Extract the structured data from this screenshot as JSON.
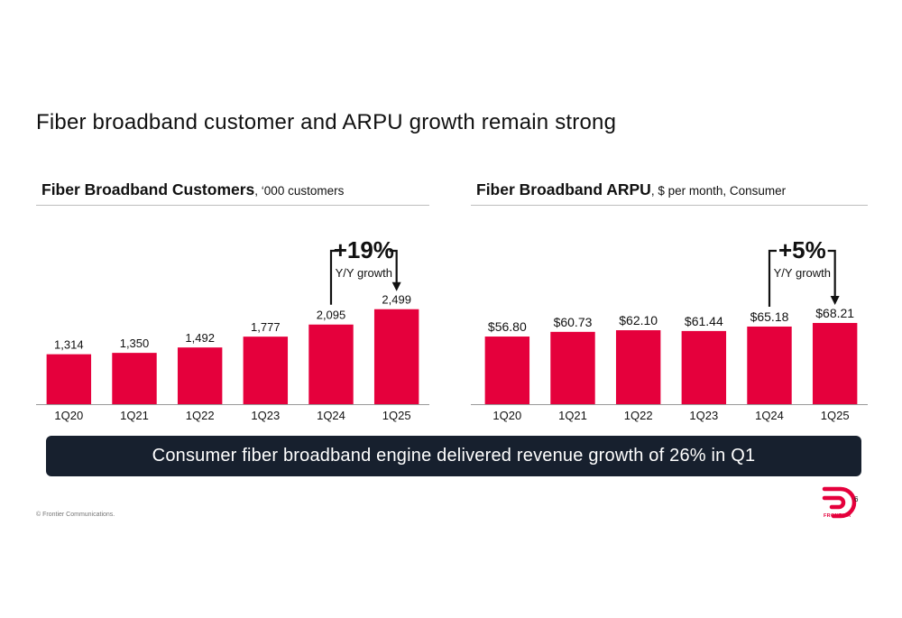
{
  "slide": {
    "title": "Fiber broadband customer and ARPU growth remain strong",
    "banner": "Consumer fiber broadband engine delivered revenue growth of 26% in Q1",
    "copyright": "© Frontier Communications.",
    "page_number": "6",
    "logo_text": "FRONTIER",
    "accent_color": "#e5003c",
    "banner_color": "#17202e"
  },
  "chart_data": [
    {
      "type": "bar",
      "title_bold": "Fiber Broadband Customers",
      "title_rest": ", ‘000 customers",
      "categories": [
        "1Q20",
        "1Q21",
        "1Q22",
        "1Q23",
        "1Q24",
        "1Q25"
      ],
      "values": [
        1314,
        1350,
        1492,
        1777,
        2095,
        2499
      ],
      "data_labels": [
        "1,314",
        "1,350",
        "1,492",
        "1,777",
        "2,095",
        "2,499"
      ],
      "ylim": [
        0,
        4700
      ],
      "bar_color": "#e5003c",
      "growth_annotation": {
        "value": "+19%",
        "label": "Y/Y growth",
        "from": "1Q24",
        "to": "1Q25"
      }
    },
    {
      "type": "bar",
      "title_bold": "Fiber Broadband ARPU",
      "title_rest": ", $ per month, Consumer",
      "categories": [
        "1Q20",
        "1Q21",
        "1Q22",
        "1Q23",
        "1Q24",
        "1Q25"
      ],
      "values": [
        56.8,
        60.73,
        62.1,
        61.44,
        65.18,
        68.21
      ],
      "data_labels": [
        "$56.80",
        "$60.73",
        "$62.10",
        "$61.44",
        "$65.18",
        "$68.21"
      ],
      "ylim": [
        0,
        150
      ],
      "bar_color": "#e5003c",
      "growth_annotation": {
        "value": "+5%",
        "label": "Y/Y growth",
        "from": "1Q24",
        "to": "1Q25"
      }
    }
  ]
}
